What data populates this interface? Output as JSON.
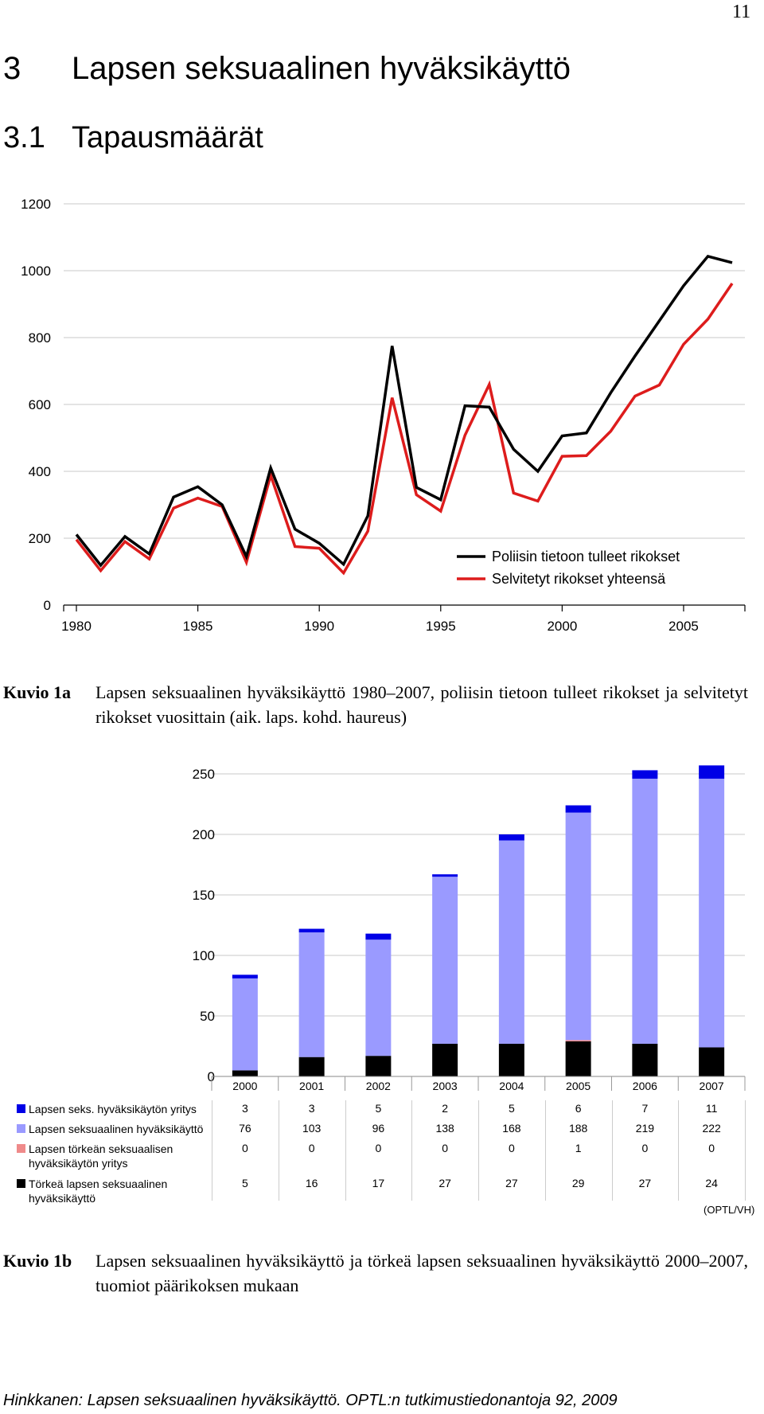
{
  "page_number": "11",
  "heading1": {
    "number": "3",
    "text": "Lapsen seksuaalinen hyväksikäyttö"
  },
  "heading2": {
    "number": "3.1",
    "text": "Tapausmäärät"
  },
  "figure_a": {
    "caption_label": "Kuvio 1a",
    "caption_text": "Lapsen seksuaalinen hyväksikäyttö 1980–2007, poliisin tietoon tulleet rikokset ja selvitetyt rikokset vuosittain (aik. laps. kohd. haureus)"
  },
  "figure_b": {
    "caption_label": "Kuvio 1b",
    "caption_text": "Lapsen seksuaalinen hyväksikäyttö ja törkeä lapsen seksuaalinen hyväksikäyttö 2000–2007, tuomiot päärikoksen mukaan",
    "source_note": "(OPTL/VH)"
  },
  "footer": "Hinkkanen: Lapsen seksuaalinen hyväksikäyttö. OPTL:n tutkimustiedonantoja 92, 2009",
  "chart_data": [
    {
      "type": "line",
      "ylim": [
        0,
        1200
      ],
      "yticks": [
        0,
        200,
        400,
        600,
        800,
        1000,
        1200
      ],
      "xticks": [
        1980,
        1985,
        1990,
        1995,
        2000,
        2005
      ],
      "grid": true,
      "legend_position": "bottom-right",
      "x": [
        1980,
        1981,
        1982,
        1983,
        1984,
        1985,
        1986,
        1987,
        1988,
        1989,
        1990,
        1991,
        1992,
        1993,
        1994,
        1995,
        1996,
        1997,
        1998,
        1999,
        2000,
        2001,
        2002,
        2003,
        2004,
        2005,
        2006,
        2007
      ],
      "series": [
        {
          "name": "Poliisin tietoon tulleet rikokset",
          "color": "#000000",
          "values": [
            211,
            119,
            205,
            153,
            323,
            354,
            300,
            145,
            410,
            227,
            185,
            122,
            267,
            775,
            352,
            315,
            596,
            592,
            466,
            400,
            506,
            515,
            635,
            745,
            850,
            955,
            1043,
            1024
          ]
        },
        {
          "name": "Selvitetyt rikokset yhteensä",
          "color": "#dd1c1c",
          "values": [
            196,
            103,
            190,
            138,
            290,
            320,
            295,
            128,
            388,
            175,
            170,
            96,
            221,
            620,
            330,
            281,
            508,
            660,
            335,
            311,
            445,
            447,
            520,
            625,
            658,
            780,
            855,
            962
          ]
        }
      ]
    },
    {
      "type": "bar",
      "stacked": true,
      "ylim": [
        0,
        250
      ],
      "yticks": [
        0,
        50,
        100,
        150,
        200,
        250
      ],
      "grid": true,
      "categories": [
        "2000",
        "2001",
        "2002",
        "2003",
        "2004",
        "2005",
        "2006",
        "2007"
      ],
      "series": [
        {
          "name": "Lapsen seks. hyväksikäytön yritys",
          "color": "#0000e6",
          "values": [
            3,
            3,
            5,
            2,
            5,
            6,
            7,
            11
          ]
        },
        {
          "name": "Lapsen seksuaalinen hyväksikäyttö",
          "color": "#9a9aff",
          "values": [
            76,
            103,
            96,
            138,
            168,
            188,
            219,
            222
          ]
        },
        {
          "name": "Lapsen törkeän seksuaalisen hyväksikäytön yritys",
          "color": "#ef8a8a",
          "values": [
            0,
            0,
            0,
            0,
            0,
            1,
            0,
            0
          ]
        },
        {
          "name": "Törkeä lapsen seksuaalinen hyväksikäyttö",
          "color": "#000000",
          "values": [
            5,
            16,
            17,
            27,
            27,
            29,
            27,
            24
          ]
        }
      ]
    }
  ]
}
